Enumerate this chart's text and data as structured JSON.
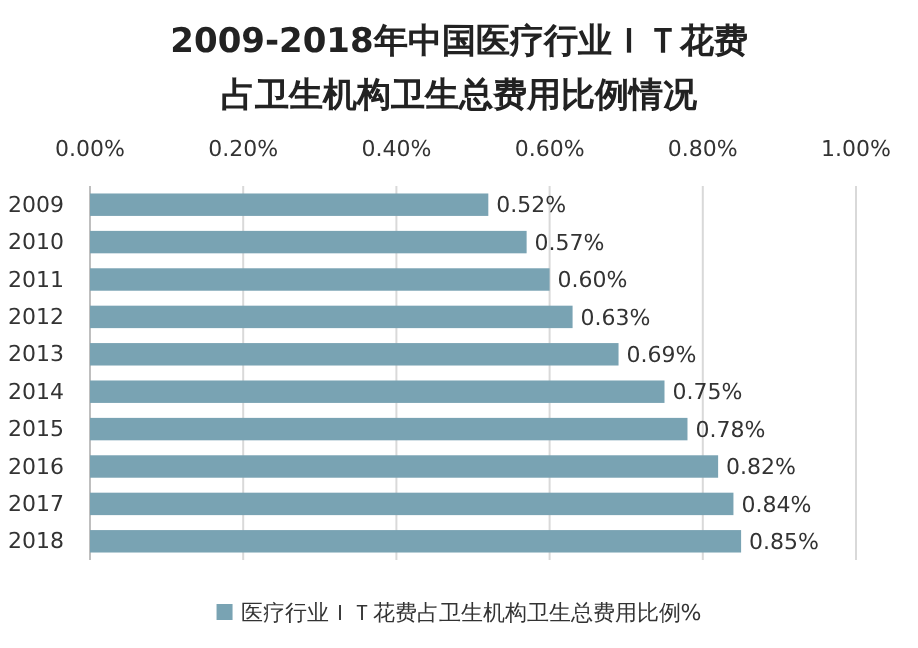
{
  "chart_data": {
    "type": "bar",
    "orientation": "horizontal",
    "title": "2009-2018年中国医疗行业ＩＴ花费占卫生机构卫生总费用比例情况",
    "categories": [
      "2009",
      "2010",
      "2011",
      "2012",
      "2013",
      "2014",
      "2015",
      "2016",
      "2017",
      "2018"
    ],
    "series": [
      {
        "name": "医疗行业ＩＴ花费占卫生机构卫生总费用比例%",
        "color": "#79a3b3",
        "values": [
          0.52,
          0.57,
          0.6,
          0.63,
          0.69,
          0.75,
          0.78,
          0.82,
          0.84,
          0.85
        ],
        "value_labels": [
          "0.52%",
          "0.57%",
          "0.60%",
          "0.63%",
          "0.69%",
          "0.75%",
          "0.78%",
          "0.82%",
          "0.84%",
          "0.85%"
        ]
      }
    ],
    "xlim": [
      0,
      1
    ],
    "xticks": [
      {
        "value": 0,
        "label": "0.00%"
      },
      {
        "value": 0.2,
        "label": "0.20%"
      },
      {
        "value": 0.4,
        "label": "0.40%"
      },
      {
        "value": 0.6,
        "label": "0.60%"
      },
      {
        "value": 0.8,
        "label": "0.80%"
      },
      {
        "value": 1,
        "label": "1.00%"
      }
    ],
    "grid": "x",
    "legend": "bottom"
  }
}
